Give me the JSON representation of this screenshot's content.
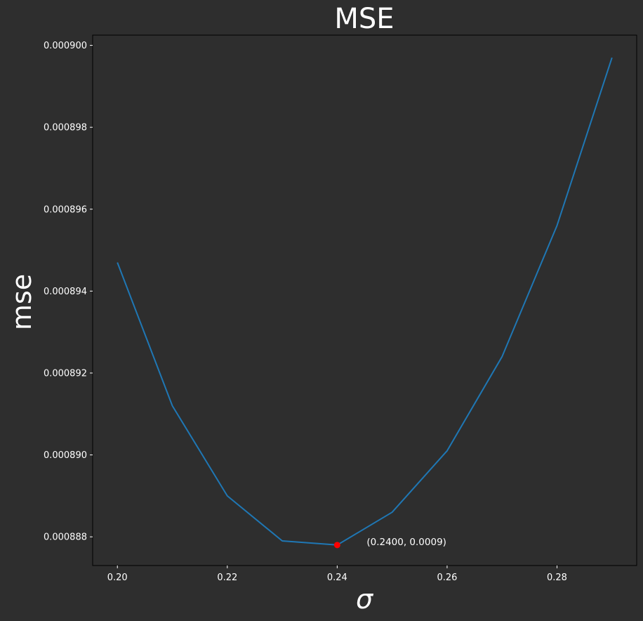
{
  "chart_data": {
    "type": "line",
    "title": "MSE",
    "xlabel": "σ",
    "ylabel": "mse",
    "x": [
      0.2,
      0.21,
      0.22,
      0.23,
      0.24,
      0.25,
      0.26,
      0.27,
      0.28,
      0.29
    ],
    "series": [
      {
        "values": [
          0.0008947,
          0.0008912,
          0.000889,
          0.0008879,
          0.0008878,
          0.0008886,
          0.0008901,
          0.0008924,
          0.0008956,
          0.0008997
        ]
      }
    ],
    "xticks": [
      0.2,
      0.22,
      0.24,
      0.26,
      0.28
    ],
    "xtick_labels": [
      "0.20",
      "0.22",
      "0.24",
      "0.26",
      "0.28"
    ],
    "yticks": [
      0.000888,
      0.00089,
      0.000892,
      0.000894,
      0.000896,
      0.000898,
      0.0009
    ],
    "ytick_labels": [
      "0.000888",
      "0.000890",
      "0.000892",
      "0.000894",
      "0.000896",
      "0.000898",
      "0.000900"
    ],
    "xlim": [
      0.1955,
      0.2945
    ],
    "ylim": [
      0.0008873,
      0.00090025
    ],
    "grid": false,
    "highlight": {
      "x": 0.24,
      "y": 0.0008878,
      "label": "(0.2400, 0.0009)",
      "color": "#ff0000"
    },
    "colors": {
      "line": "#1f77b4",
      "background": "#2e2e2e",
      "text": "#ffffff",
      "axis": "#000000"
    }
  }
}
